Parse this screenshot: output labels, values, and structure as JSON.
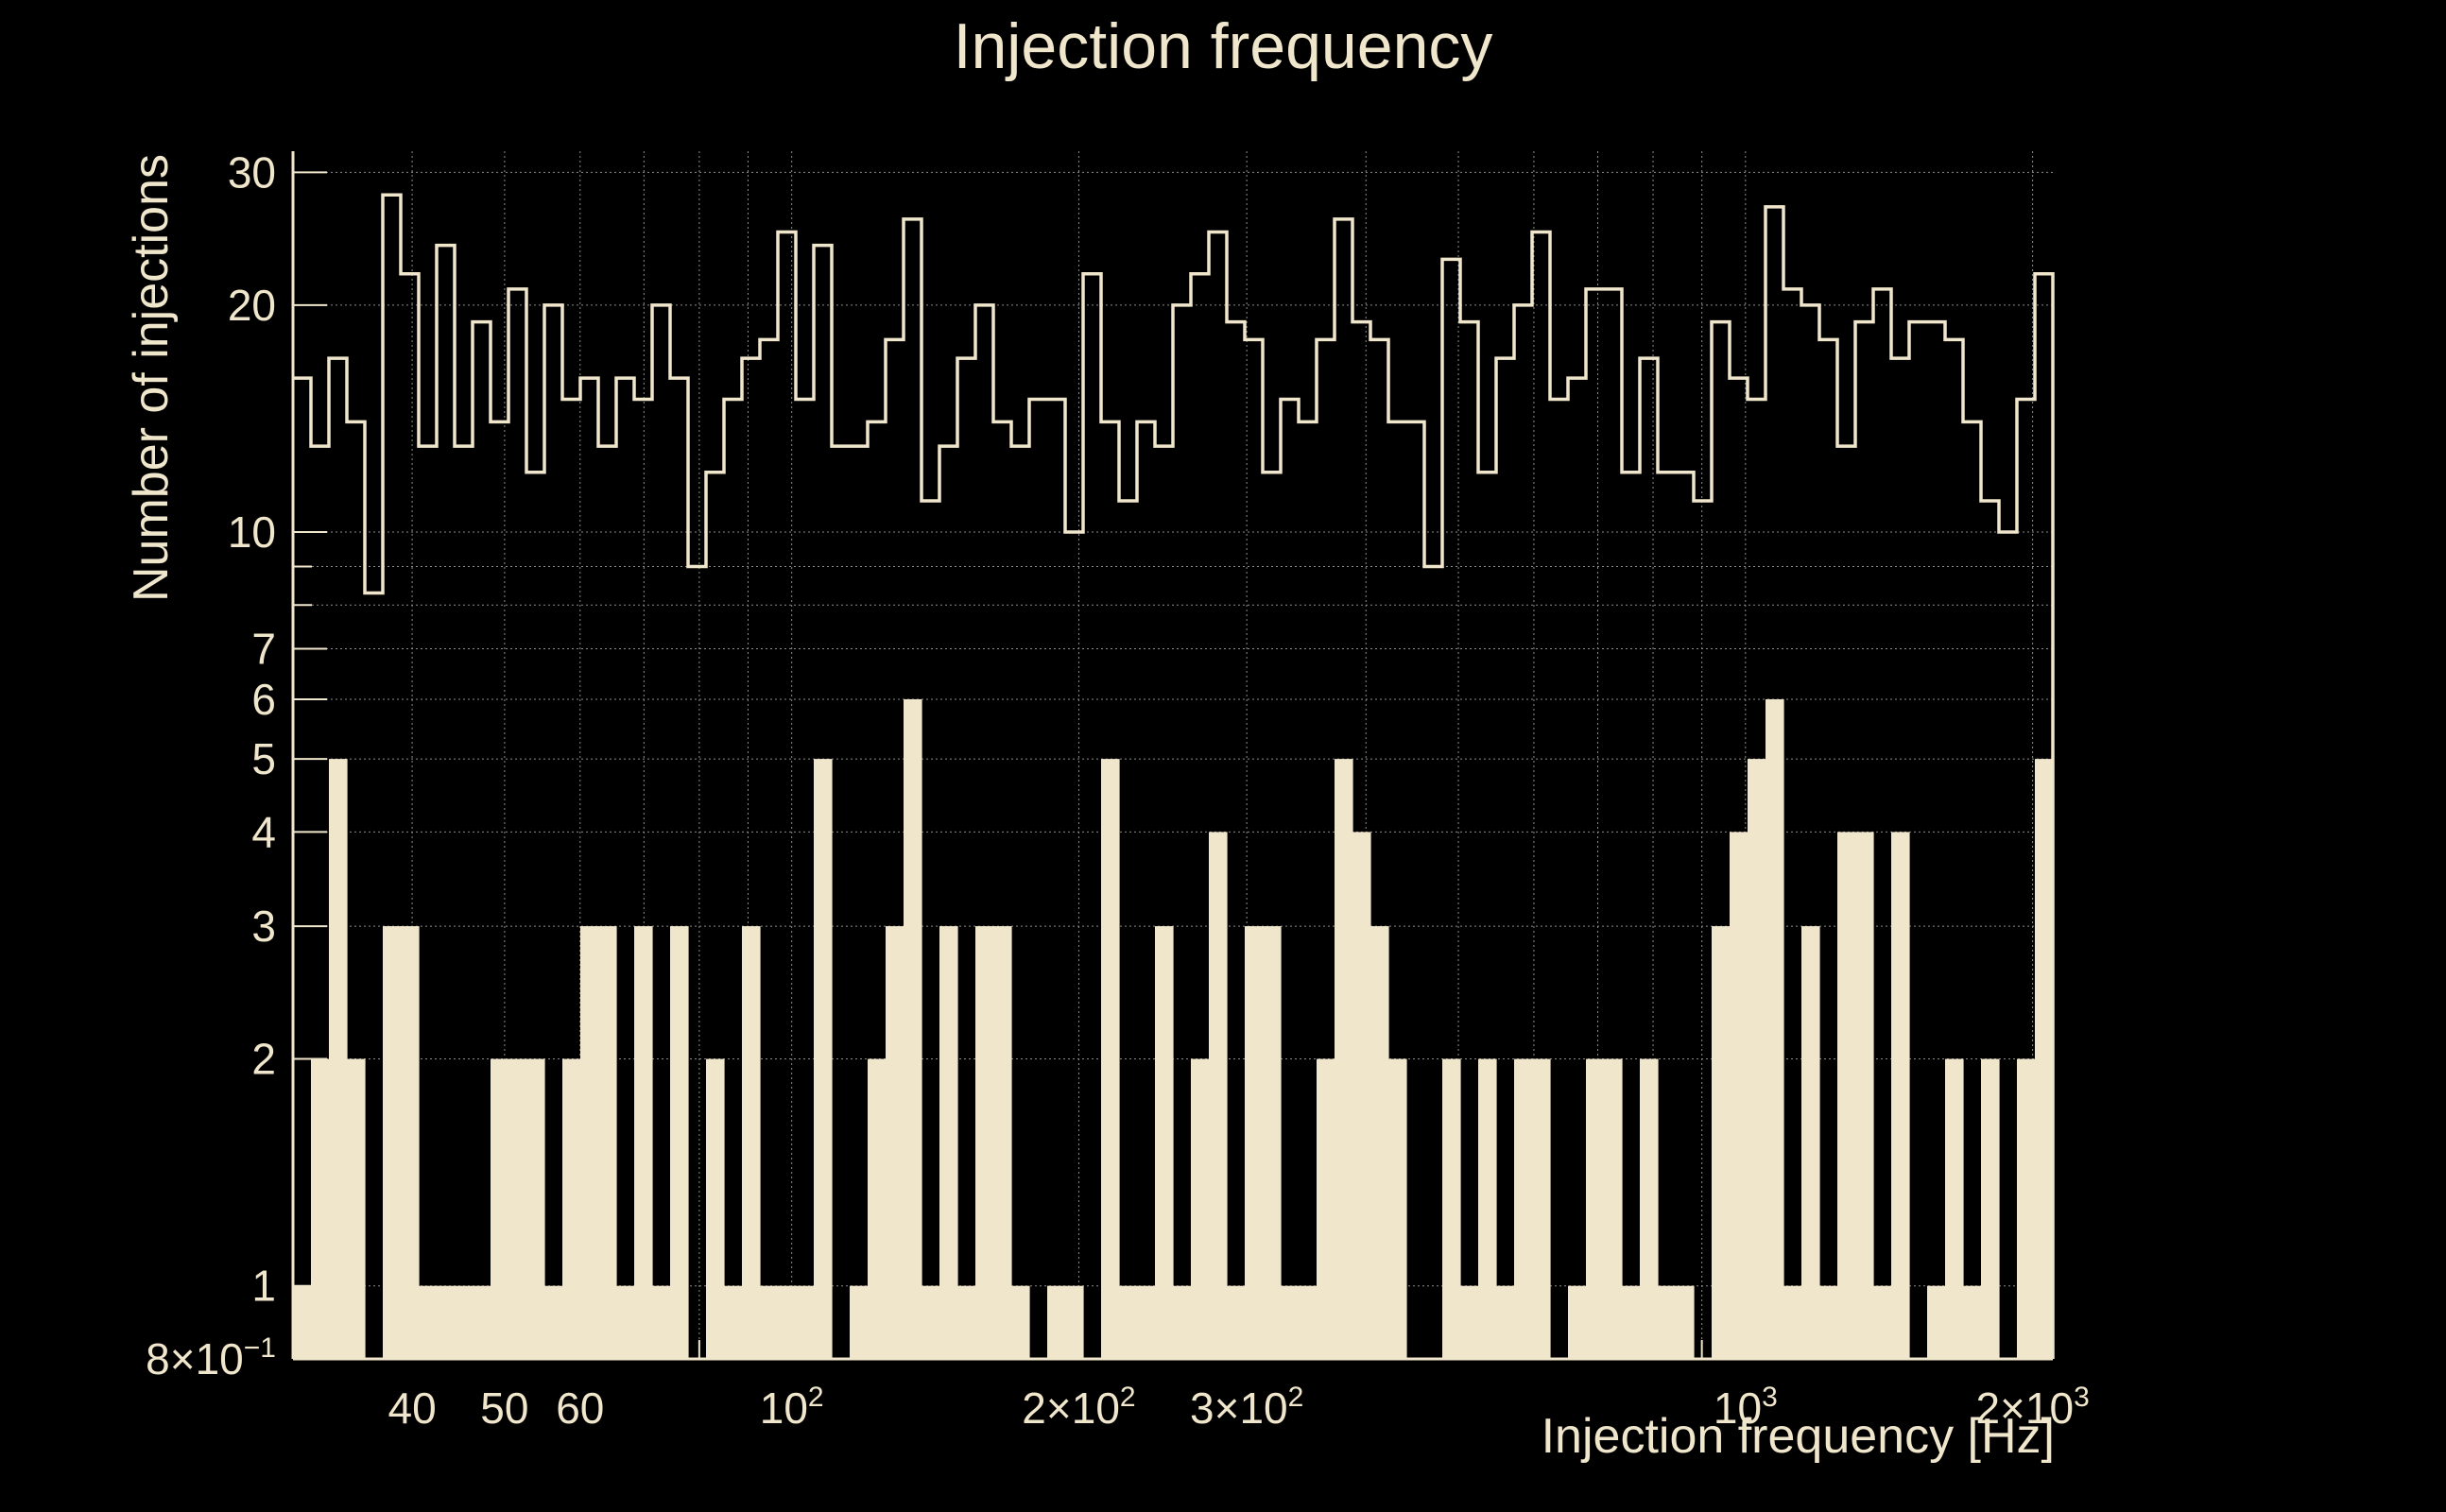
{
  "colors": {
    "background": "#000000",
    "foreground": "#f0e6cc",
    "grid": "#8c8c8c"
  },
  "chart_data": {
    "type": "bar",
    "title": "Injection frequency",
    "xlabel": "Injection frequency [Hz]",
    "ylabel": "Number of injections",
    "xscale": "log",
    "yscale": "log",
    "xlim": [
      30,
      2100
    ],
    "ylim": [
      0.8,
      32
    ],
    "grid": true,
    "x_ticks": [
      {
        "value": 40,
        "base": "40",
        "exp": ""
      },
      {
        "value": 50,
        "base": "50",
        "exp": ""
      },
      {
        "value": 60,
        "base": "60",
        "exp": ""
      },
      {
        "value": 100,
        "base": "10",
        "exp": "2"
      },
      {
        "value": 200,
        "base": "2×10",
        "exp": "2"
      },
      {
        "value": 300,
        "base": "3×10",
        "exp": "2"
      },
      {
        "value": 1000,
        "base": "10",
        "exp": "3"
      },
      {
        "value": 2000,
        "base": "2×10",
        "exp": "3"
      }
    ],
    "y_ticks": [
      {
        "value": 0.8,
        "base": "8×10",
        "exp": "−1"
      },
      {
        "value": 1,
        "base": "1",
        "exp": ""
      },
      {
        "value": 2,
        "base": "2",
        "exp": ""
      },
      {
        "value": 3,
        "base": "3",
        "exp": ""
      },
      {
        "value": 4,
        "base": "4",
        "exp": ""
      },
      {
        "value": 5,
        "base": "5",
        "exp": ""
      },
      {
        "value": 6,
        "base": "6",
        "exp": ""
      },
      {
        "value": 7,
        "base": "7",
        "exp": ""
      },
      {
        "value": 10,
        "base": "10",
        "exp": ""
      },
      {
        "value": 20,
        "base": "20",
        "exp": ""
      },
      {
        "value": 30,
        "base": "30",
        "exp": ""
      }
    ],
    "series": [
      {
        "style": "step",
        "values": [
          16,
          13,
          17,
          14,
          8.3,
          28,
          22,
          13,
          24,
          13,
          19,
          14,
          21,
          12,
          20,
          15,
          16,
          13,
          16,
          15,
          20,
          16,
          9,
          12,
          15,
          17,
          18,
          25,
          15,
          24,
          13,
          13,
          14,
          18,
          26,
          11,
          13,
          17,
          20,
          14,
          13,
          15,
          15,
          10,
          22,
          14,
          11,
          14,
          13,
          20,
          22,
          25,
          19,
          18,
          12,
          15,
          14,
          18,
          26,
          19,
          18,
          14,
          14,
          9,
          23,
          19,
          12,
          17,
          20,
          25,
          15,
          16,
          21,
          21,
          12,
          17,
          12,
          12,
          11,
          19,
          16,
          15,
          27,
          21,
          20,
          18,
          13,
          19,
          21,
          17,
          19,
          19,
          18,
          14,
          11,
          10,
          15,
          22
        ]
      },
      {
        "style": "filled",
        "values": [
          1,
          2,
          5,
          2,
          0,
          3,
          3,
          1,
          1,
          1,
          1,
          2,
          2,
          2,
          1,
          2,
          3,
          3,
          1,
          3,
          1,
          3,
          0,
          2,
          1,
          3,
          1,
          1,
          1,
          5,
          0,
          1,
          2,
          3,
          6,
          1,
          3,
          1,
          3,
          3,
          1,
          0,
          1,
          1,
          0,
          5,
          1,
          1,
          3,
          1,
          2,
          4,
          1,
          3,
          3,
          1,
          1,
          2,
          5,
          4,
          3,
          2,
          0,
          0,
          2,
          1,
          2,
          1,
          2,
          2,
          0,
          1,
          2,
          2,
          1,
          2,
          1,
          1,
          0,
          3,
          4,
          5,
          6,
          1,
          3,
          1,
          4,
          4,
          1,
          4,
          0,
          1,
          2,
          1,
          2,
          0,
          2,
          5
        ]
      }
    ]
  }
}
